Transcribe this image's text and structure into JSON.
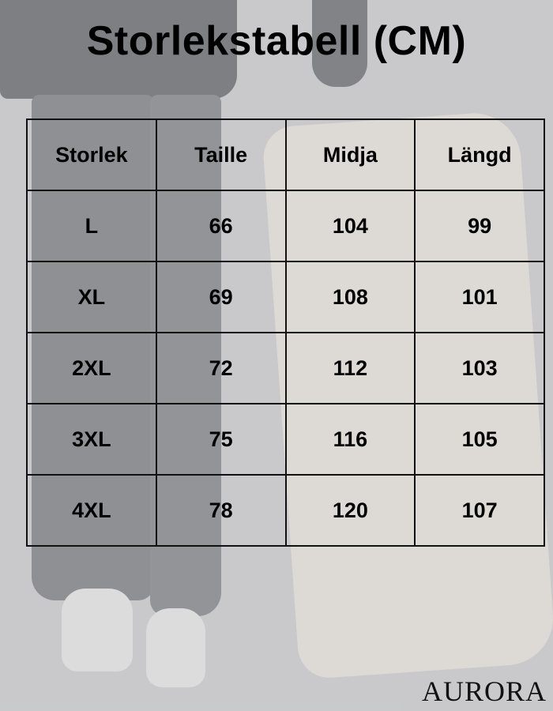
{
  "title": "Storlekstabell (CM)",
  "table": {
    "headers": [
      "Storlek",
      "Taille",
      "Midja",
      "Längd"
    ],
    "rows": [
      [
        "L",
        "66",
        "104",
        "99"
      ],
      [
        "XL",
        "69",
        "108",
        "101"
      ],
      [
        "2XL",
        "72",
        "112",
        "103"
      ],
      [
        "3XL",
        "75",
        "116",
        "105"
      ],
      [
        "4XL",
        "78",
        "120",
        "107"
      ]
    ]
  },
  "brand": "AURORA"
}
